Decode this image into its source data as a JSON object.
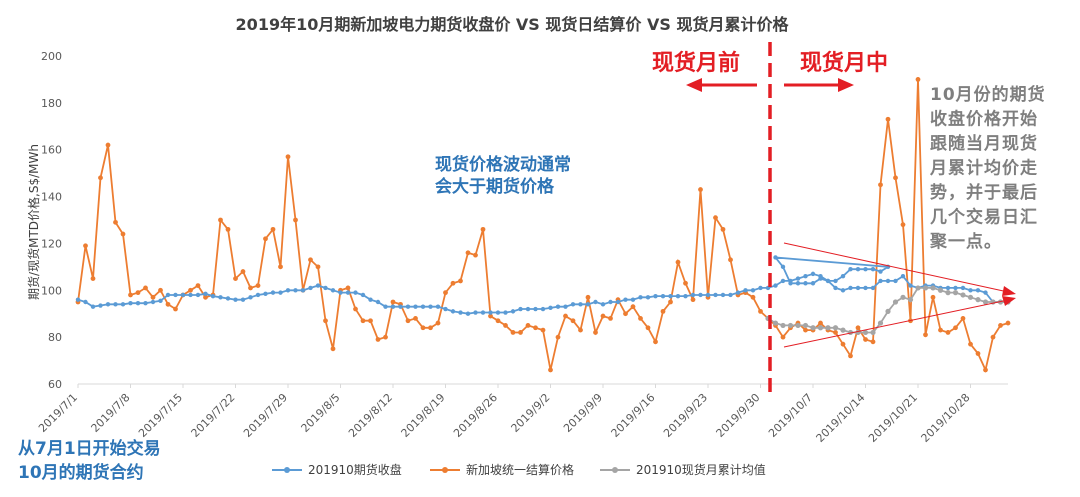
{
  "colors": {
    "futures": "#5b9bd5",
    "spot": "#ed7d31",
    "mtd": "#a5a5a5",
    "divider": "#e31e24",
    "arrow": "#e31e24",
    "axis": "#d9d9d9"
  },
  "chart_data": {
    "type": "line",
    "title": "2019年10月期新加坡电力期货收盘价 VS 现货日结算价 VS 现货月累计价格",
    "ylabel": "期货/现货MTD价格,S$/MWh",
    "xlabel": "",
    "ylim": [
      60,
      200
    ],
    "yticks": [
      "60",
      "80",
      "100",
      "120",
      "140",
      "160",
      "180",
      "200"
    ],
    "x_start": "2019/7/1",
    "x_end": "2019/11/1",
    "xtick_labels": [
      "2019/7/1",
      "2019/7/8",
      "2019/7/15",
      "2019/7/22",
      "2019/7/29",
      "2019/8/5",
      "2019/8/12",
      "2019/8/19",
      "2019/8/26",
      "2019/9/2",
      "2019/9/9",
      "2019/9/16",
      "2019/9/23",
      "2019/9/30",
      "2019/10/7",
      "2019/10/14",
      "2019/10/21",
      "2019/10/28"
    ],
    "legend_position": "bottom",
    "grid": false,
    "series": [
      {
        "name": "201910期货收盘",
        "values": [
          [
            0,
            96
          ],
          [
            1,
            95
          ],
          [
            2,
            93
          ],
          [
            3,
            93.5
          ],
          [
            4,
            94
          ],
          [
            5,
            94
          ],
          [
            6,
            94
          ],
          [
            7,
            94.5
          ],
          [
            8,
            94.5
          ],
          [
            9,
            94.5
          ],
          [
            10,
            95
          ],
          [
            11,
            95.5
          ],
          [
            12,
            98
          ],
          [
            13,
            98
          ],
          [
            14,
            98
          ],
          [
            15,
            98
          ],
          [
            16,
            98
          ],
          [
            17,
            98.5
          ],
          [
            18,
            97.5
          ],
          [
            19,
            97
          ],
          [
            20,
            96.5
          ],
          [
            21,
            96
          ],
          [
            22,
            96
          ],
          [
            23,
            97
          ],
          [
            24,
            98
          ],
          [
            25,
            98.5
          ],
          [
            26,
            99
          ],
          [
            27,
            99
          ],
          [
            28,
            100
          ],
          [
            29,
            100
          ],
          [
            30,
            100
          ],
          [
            31,
            101
          ],
          [
            32,
            102
          ],
          [
            33,
            101
          ],
          [
            34,
            100
          ],
          [
            35,
            99
          ],
          [
            36,
            99
          ],
          [
            37,
            99
          ],
          [
            38,
            98
          ],
          [
            39,
            96
          ],
          [
            40,
            95
          ],
          [
            41,
            93
          ],
          [
            42,
            93
          ],
          [
            43,
            93
          ],
          [
            44,
            93
          ],
          [
            45,
            93
          ],
          [
            46,
            93
          ],
          [
            47,
            93
          ],
          [
            48,
            93
          ],
          [
            49,
            92
          ],
          [
            50,
            91
          ],
          [
            51,
            90.5
          ],
          [
            52,
            90
          ],
          [
            53,
            90.5
          ],
          [
            54,
            90.5
          ],
          [
            55,
            90.5
          ],
          [
            56,
            90.5
          ],
          [
            57,
            90.5
          ],
          [
            58,
            91
          ],
          [
            59,
            92
          ],
          [
            60,
            92
          ],
          [
            61,
            92
          ],
          [
            62,
            92
          ],
          [
            63,
            92.5
          ],
          [
            64,
            93
          ],
          [
            65,
            93
          ],
          [
            66,
            94
          ],
          [
            67,
            94
          ],
          [
            68,
            94
          ],
          [
            69,
            95
          ],
          [
            70,
            94
          ],
          [
            71,
            95
          ],
          [
            72,
            95
          ],
          [
            73,
            96
          ],
          [
            74,
            96
          ],
          [
            75,
            97
          ],
          [
            76,
            97
          ],
          [
            77,
            97.5
          ],
          [
            78,
            97.5
          ],
          [
            79,
            97.5
          ],
          [
            80,
            97.5
          ],
          [
            81,
            97.5
          ],
          [
            82,
            98
          ],
          [
            83,
            98
          ],
          [
            84,
            98
          ],
          [
            85,
            98
          ],
          [
            86,
            98
          ],
          [
            87,
            98
          ],
          [
            88,
            99
          ],
          [
            89,
            100
          ],
          [
            90,
            100
          ],
          [
            91,
            101
          ],
          [
            92,
            101
          ],
          [
            93,
            102
          ],
          [
            94,
            104
          ],
          [
            95,
            104
          ],
          [
            96,
            105
          ],
          [
            97,
            106
          ],
          [
            98,
            107
          ],
          [
            99,
            106
          ],
          [
            100,
            104
          ],
          [
            101,
            104
          ],
          [
            102,
            106
          ],
          [
            103,
            109
          ],
          [
            104,
            109
          ],
          [
            105,
            109
          ],
          [
            106,
            109
          ],
          [
            107,
            108
          ],
          [
            108,
            110
          ]
        ]
      },
      {
        "name": "新加坡统一结算价格",
        "values": [
          [
            0,
            95
          ],
          [
            1,
            119
          ],
          [
            2,
            105
          ],
          [
            3,
            148
          ],
          [
            4,
            162
          ],
          [
            5,
            129
          ],
          [
            6,
            124
          ],
          [
            7,
            98
          ],
          [
            8,
            99
          ],
          [
            9,
            101
          ],
          [
            10,
            97
          ],
          [
            11,
            100
          ],
          [
            12,
            94
          ],
          [
            13,
            92
          ],
          [
            14,
            98
          ],
          [
            15,
            100
          ],
          [
            16,
            102
          ],
          [
            17,
            97
          ],
          [
            18,
            98
          ],
          [
            19,
            130
          ],
          [
            20,
            126
          ],
          [
            21,
            105
          ],
          [
            22,
            108
          ],
          [
            23,
            101
          ],
          [
            24,
            102
          ],
          [
            25,
            122
          ],
          [
            26,
            126
          ],
          [
            27,
            110
          ],
          [
            28,
            157
          ],
          [
            29,
            130
          ],
          [
            30,
            100
          ],
          [
            31,
            113
          ],
          [
            32,
            110
          ],
          [
            33,
            87
          ],
          [
            34,
            75
          ],
          [
            35,
            100
          ],
          [
            36,
            101
          ],
          [
            37,
            92
          ],
          [
            38,
            87
          ],
          [
            39,
            87
          ],
          [
            40,
            79
          ],
          [
            41,
            80
          ],
          [
            42,
            95
          ],
          [
            43,
            94
          ],
          [
            44,
            87
          ],
          [
            45,
            88
          ],
          [
            46,
            84
          ],
          [
            47,
            84
          ],
          [
            48,
            86
          ],
          [
            49,
            99
          ],
          [
            50,
            103
          ],
          [
            51,
            104
          ],
          [
            52,
            116
          ],
          [
            53,
            115
          ],
          [
            54,
            126
          ],
          [
            55,
            89
          ],
          [
            56,
            87
          ],
          [
            57,
            85
          ],
          [
            58,
            82
          ],
          [
            59,
            82
          ],
          [
            60,
            85
          ],
          [
            61,
            84
          ],
          [
            62,
            83
          ],
          [
            63,
            66
          ],
          [
            64,
            80
          ],
          [
            65,
            89
          ],
          [
            66,
            87
          ],
          [
            67,
            83
          ],
          [
            68,
            97
          ],
          [
            69,
            82
          ],
          [
            70,
            89
          ],
          [
            71,
            88
          ],
          [
            72,
            96
          ],
          [
            73,
            90
          ],
          [
            74,
            93
          ],
          [
            75,
            88
          ],
          [
            76,
            84
          ],
          [
            77,
            78
          ],
          [
            78,
            91
          ],
          [
            79,
            95
          ],
          [
            80,
            112
          ],
          [
            81,
            103
          ],
          [
            82,
            96
          ],
          [
            83,
            143
          ],
          [
            84,
            97
          ],
          [
            85,
            131
          ],
          [
            86,
            126
          ],
          [
            87,
            113
          ],
          [
            88,
            98
          ],
          [
            89,
            99
          ],
          [
            90,
            97
          ],
          [
            91,
            91
          ],
          [
            92,
            88
          ]
        ]
      },
      {
        "name": "201910现货月累计均值",
        "values": []
      }
    ]
  },
  "oct_spot": [
    [
      92,
      88
    ],
    [
      93,
      85
    ],
    [
      94,
      80
    ],
    [
      95,
      84
    ],
    [
      96,
      86
    ],
    [
      97,
      83
    ],
    [
      98,
      83
    ],
    [
      99,
      86
    ],
    [
      100,
      83
    ],
    [
      101,
      82
    ],
    [
      102,
      77
    ],
    [
      103,
      72
    ],
    [
      104,
      84
    ],
    [
      105,
      79
    ],
    [
      106,
      78
    ],
    [
      107,
      145
    ],
    [
      108,
      173
    ],
    [
      109,
      148
    ],
    [
      110,
      128
    ],
    [
      111,
      87
    ],
    [
      112,
      190
    ],
    [
      113,
      81
    ],
    [
      114,
      97
    ],
    [
      115,
      83
    ],
    [
      116,
      82
    ],
    [
      117,
      84
    ],
    [
      118,
      88
    ],
    [
      119,
      77
    ],
    [
      120,
      73
    ],
    [
      121,
      66
    ],
    [
      122,
      80
    ],
    [
      123,
      85
    ],
    [
      124,
      86
    ]
  ],
  "oct_futures": [
    [
      92,
      118
    ],
    [
      93,
      114
    ],
    [
      94,
      110
    ],
    [
      95,
      103
    ],
    [
      96,
      103
    ],
    [
      97,
      103
    ],
    [
      98,
      103
    ],
    [
      99,
      105
    ],
    [
      100,
      104
    ],
    [
      101,
      101
    ],
    [
      102,
      100
    ],
    [
      103,
      101
    ],
    [
      104,
      101
    ],
    [
      105,
      101
    ],
    [
      106,
      101
    ],
    [
      107,
      104
    ],
    [
      108,
      104
    ],
    [
      109,
      104
    ],
    [
      110,
      106
    ],
    [
      111,
      102
    ],
    [
      112,
      101
    ],
    [
      113,
      102
    ],
    [
      114,
      102
    ],
    [
      115,
      101
    ],
    [
      116,
      101
    ],
    [
      117,
      101
    ],
    [
      118,
      101
    ],
    [
      119,
      100
    ],
    [
      120,
      100
    ],
    [
      121,
      99
    ],
    [
      122,
      95
    ],
    [
      123,
      95
    ],
    [
      124,
      95
    ]
  ],
  "oct_mtd": [
    [
      92,
      88
    ],
    [
      93,
      86
    ],
    [
      94,
      85
    ],
    [
      95,
      85
    ],
    [
      96,
      85
    ],
    [
      97,
      85
    ],
    [
      98,
      84
    ],
    [
      99,
      84
    ],
    [
      100,
      84
    ],
    [
      101,
      84
    ],
    [
      102,
      83
    ],
    [
      103,
      82
    ],
    [
      104,
      82
    ],
    [
      105,
      82
    ],
    [
      106,
      82
    ],
    [
      107,
      86
    ],
    [
      108,
      91
    ],
    [
      109,
      95
    ],
    [
      110,
      97
    ],
    [
      111,
      96
    ],
    [
      112,
      101
    ],
    [
      113,
      101
    ],
    [
      114,
      101
    ],
    [
      115,
      100
    ],
    [
      116,
      99
    ],
    [
      117,
      99
    ],
    [
      118,
      98
    ],
    [
      119,
      97
    ],
    [
      120,
      96
    ],
    [
      121,
      95
    ],
    [
      122,
      95
    ],
    [
      123,
      95
    ],
    [
      124,
      95
    ]
  ],
  "annotations": {
    "before": "现货月前",
    "during": "现货月中",
    "blue_note": [
      "现货价格波动通常",
      "会大于期货价格"
    ],
    "gray_note": [
      "10月份的期货",
      "收盘价格开始",
      "跟随当月现货",
      "月累计均价走",
      "势，并于最后",
      "几个交易日汇",
      "聚一点。"
    ],
    "bottom_note": [
      "从7月1日开始交易",
      "10月的期货合约"
    ]
  }
}
